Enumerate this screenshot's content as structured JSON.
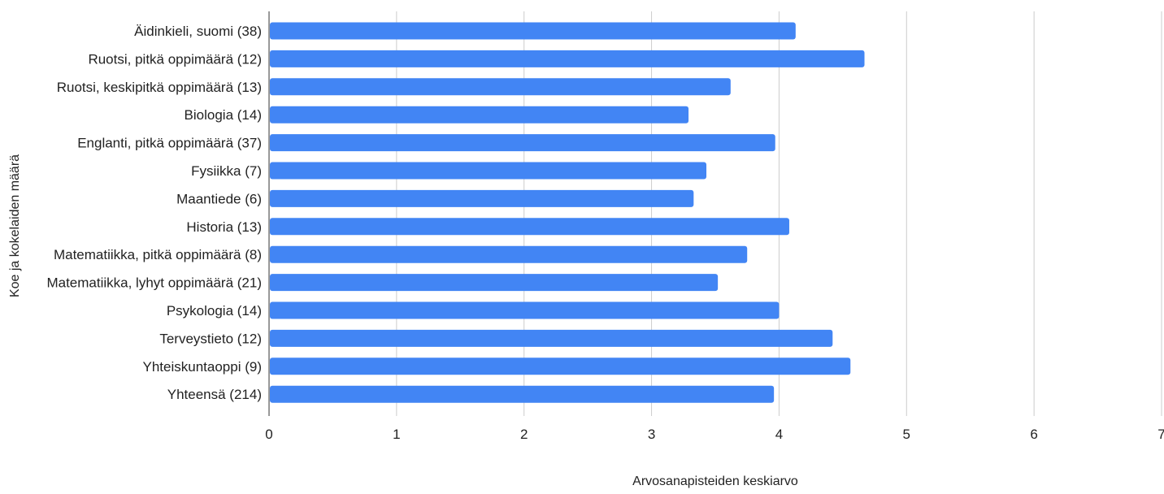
{
  "chart_data": {
    "type": "bar",
    "orientation": "horizontal",
    "title": "",
    "xlabel": "Arvosanapisteiden keskiarvo",
    "ylabel": "Koe ja kokelaiden määrä",
    "categories": [
      "Äidinkieli, suomi (38)",
      "Ruotsi, pitkä oppimäärä (12)",
      "Ruotsi, keskipitkä oppimäärä (13)",
      "Biologia (14)",
      "Englanti, pitkä oppimäärä (37)",
      "Fysiikka (7)",
      "Maantiede (6)",
      "Historia (13)",
      "Matematiikka, pitkä oppimäärä (8)",
      "Matematiikka, lyhyt oppimäärä (21)",
      "Psykologia (14)",
      "Terveystieto (12)",
      "Yhteiskuntaoppi (9)",
      "Yhteensä (214)"
    ],
    "values": [
      4.13,
      4.67,
      3.62,
      3.29,
      3.97,
      3.43,
      3.33,
      4.08,
      3.75,
      3.52,
      4.0,
      4.42,
      4.56,
      3.96
    ],
    "xlim": [
      0,
      7
    ],
    "xticks": [
      0,
      1,
      2,
      3,
      4,
      5,
      6,
      7
    ],
    "grid": true,
    "legend": "none",
    "colors": {
      "bar": "#4285f4",
      "grid": "#cccccc",
      "axis": "#333333",
      "text": "#222222"
    }
  }
}
